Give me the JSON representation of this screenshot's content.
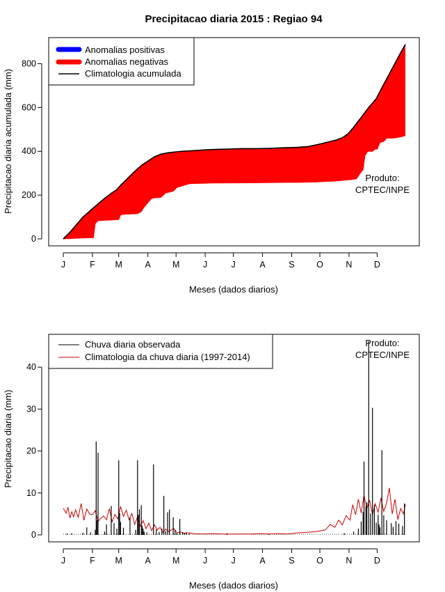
{
  "title": "Precipitacao diaria 2015 : Regiao 94",
  "product_label": [
    "Produto:",
    "CPTEC/INPE"
  ],
  "colors": {
    "positive": "#0000ff",
    "negative": "#ff0000",
    "climatology_line": "#000000",
    "observed_line": "#000000",
    "clim_daily": "#cc0000"
  },
  "chart_data": [
    {
      "type": "area",
      "title": "Precipitacao diaria 2015 : Regiao 94",
      "xlabel": "Meses (dados diarios)",
      "ylabel": "Precipitacao diaria acumulada (mm)",
      "xlim": [
        1,
        365
      ],
      "ylim": [
        0,
        900
      ],
      "yticks": [
        0,
        200,
        400,
        600,
        800
      ],
      "month_labels": [
        "J",
        "F",
        "M",
        "A",
        "M",
        "J",
        "J",
        "A",
        "S",
        "O",
        "N",
        "D"
      ],
      "month_days": [
        1,
        32,
        60,
        91,
        121,
        152,
        182,
        213,
        244,
        274,
        305,
        335
      ],
      "legend": [
        "Anomalias positivas",
        "Anomalias negativas",
        "Climatologia acumulada"
      ],
      "legend_position": "top-left",
      "climatology_accumulated": {
        "x": [
          1,
          8,
          15,
          22,
          30,
          38,
          45,
          52,
          58,
          62,
          68,
          75,
          80,
          85,
          91,
          98,
          105,
          112,
          120,
          128,
          140,
          150,
          160,
          175,
          190,
          205,
          220,
          235,
          250,
          262,
          275,
          285,
          292,
          298,
          304,
          310,
          318,
          326,
          334,
          340,
          345,
          350,
          355,
          360,
          365
        ],
        "y": [
          0,
          30,
          65,
          100,
          130,
          160,
          185,
          208,
          225,
          245,
          270,
          300,
          320,
          338,
          355,
          375,
          387,
          393,
          397,
          400,
          403,
          406,
          408,
          410,
          412,
          412,
          413,
          416,
          418,
          422,
          434,
          445,
          452,
          462,
          480,
          510,
          555,
          600,
          640,
          690,
          730,
          770,
          810,
          850,
          888
        ]
      },
      "observed_accumulated": {
        "x": [
          1,
          10,
          20,
          28,
          33,
          35,
          38,
          55,
          60,
          62,
          65,
          80,
          84,
          87,
          95,
          100,
          105,
          110,
          118,
          122,
          126,
          135,
          160,
          200,
          240,
          250,
          270,
          285,
          290,
          300,
          305,
          310,
          313,
          317,
          320,
          322,
          325,
          330,
          333,
          335,
          338,
          342,
          345,
          350,
          355,
          360,
          365
        ],
        "y": [
          0,
          2,
          4,
          5,
          5,
          70,
          83,
          87,
          88,
          110,
          112,
          115,
          125,
          145,
          185,
          188,
          190,
          210,
          218,
          235,
          240,
          252,
          255,
          256,
          258,
          258,
          260,
          263,
          264,
          268,
          270,
          272,
          275,
          300,
          316,
          380,
          400,
          400,
          410,
          410,
          440,
          445,
          460,
          460,
          462,
          466,
          472
        ]
      }
    },
    {
      "type": "line",
      "title": "",
      "xlabel": "Meses (dados diarios)",
      "ylabel": "Precipitacao diaria (mm)",
      "xlim": [
        1,
        365
      ],
      "ylim": [
        0,
        47
      ],
      "yticks": [
        0,
        10,
        20,
        30,
        40
      ],
      "month_labels": [
        "J",
        "F",
        "M",
        "A",
        "M",
        "J",
        "J",
        "A",
        "S",
        "O",
        "N",
        "D"
      ],
      "month_days": [
        1,
        32,
        60,
        91,
        121,
        152,
        182,
        213,
        244,
        274,
        305,
        335
      ],
      "legend": [
        "Chuva diaria observada",
        "Climatologia da chuva diaria (1997-2014)"
      ],
      "legend_position": "top-left",
      "observed_daily": {
        "day": [
          5,
          10,
          22,
          26,
          30,
          35,
          36,
          37,
          38,
          45,
          47,
          52,
          55,
          58,
          60,
          61,
          62,
          65,
          72,
          78,
          80,
          81,
          82,
          84,
          85,
          86,
          87,
          90,
          97,
          100,
          103,
          106,
          108,
          110,
          112,
          114,
          118,
          120,
          122,
          125,
          128,
          130,
          132,
          135,
          175,
          220,
          300,
          310,
          315,
          318,
          320,
          321,
          323,
          324,
          326,
          328,
          330,
          332,
          334,
          336,
          337,
          338,
          340,
          342,
          345,
          350,
          352,
          355,
          358,
          362,
          364
        ],
        "value": [
          0.3,
          0.4,
          0.5,
          1.8,
          0.6,
          1.2,
          22.3,
          3.5,
          19.6,
          0.8,
          2.5,
          6.9,
          2.8,
          1.5,
          17.8,
          5.2,
          3.1,
          1.7,
          4.1,
          1.2,
          17.8,
          4.8,
          6.1,
          7.1,
          2.2,
          1.5,
          0.8,
          0.6,
          16.8,
          1.3,
          0.7,
          1.5,
          9.3,
          0.9,
          5.4,
          6.0,
          4.2,
          1.2,
          0.5,
          3.8,
          0.6,
          0.5,
          0.6,
          0.3,
          0.3,
          0.2,
          0.4,
          0.8,
          1.5,
          3.2,
          5.5,
          17.5,
          6.8,
          7.8,
          46.2,
          5.1,
          30.3,
          7.2,
          2.9,
          4.8,
          2.5,
          1.8,
          20.2,
          4.7,
          3.5,
          2.8,
          1.9,
          3.3,
          2.7,
          2.1,
          7.5
        ]
      },
      "climatology_daily": {
        "x": [
          1,
          4,
          6,
          8,
          10,
          12,
          14,
          17,
          20,
          23,
          26,
          29,
          32,
          35,
          38,
          41,
          44,
          47,
          50,
          53,
          56,
          59,
          62,
          65,
          68,
          71,
          74,
          77,
          80,
          83,
          86,
          89,
          92,
          95,
          98,
          101,
          104,
          107,
          110,
          113,
          116,
          119,
          122,
          126,
          130,
          135,
          140,
          150,
          160,
          170,
          180,
          190,
          200,
          210,
          220,
          230,
          240,
          250,
          260,
          270,
          280,
          285,
          290,
          294,
          298,
          302,
          306,
          309,
          312,
          315,
          318,
          321,
          324,
          327,
          330,
          333,
          336,
          339,
          342,
          345,
          348,
          351,
          354,
          357,
          360,
          363,
          365
        ],
        "y": [
          6.3,
          5.2,
          6.6,
          4.0,
          5.5,
          4.3,
          6.0,
          4.2,
          7.5,
          3.5,
          6.2,
          5.0,
          4.8,
          5.8,
          3.2,
          4.0,
          4.5,
          3.6,
          6.3,
          3.1,
          4.9,
          3.8,
          6.8,
          4.4,
          5.9,
          3.6,
          5.1,
          2.5,
          4.3,
          2.1,
          3.4,
          1.5,
          2.8,
          1.0,
          2.4,
          1.2,
          1.8,
          0.6,
          1.4,
          0.8,
          1.2,
          1.5,
          0.5,
          0.7,
          0.4,
          0.5,
          0.3,
          0.2,
          0.3,
          0.2,
          0.2,
          0.2,
          0.2,
          0.3,
          0.2,
          0.3,
          0.2,
          0.5,
          0.6,
          0.8,
          1.2,
          2.5,
          1.8,
          3.5,
          2.4,
          4.6,
          3.5,
          7.2,
          4.8,
          8.5,
          5.2,
          9.5,
          6.2,
          8.3,
          4.8,
          7.4,
          5.4,
          8.8,
          5.6,
          7.6,
          11.2,
          5.0,
          8.5,
          3.6,
          6.3,
          5.0,
          7.3
        ]
      }
    }
  ]
}
